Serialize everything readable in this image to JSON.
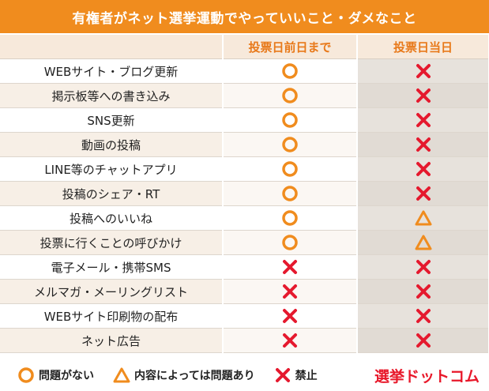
{
  "title": "有権者がネット選挙運動でやっていいこと・ダメなこと",
  "columns": {
    "before": "投票日前日まで",
    "day": "投票日当日"
  },
  "symbol_colors": {
    "ok": "#f08c1e",
    "conditional": "#f08c1e",
    "ng": "#e5192e"
  },
  "rows": [
    {
      "label": "WEBサイト・ブログ更新",
      "before": "ok",
      "day": "ng"
    },
    {
      "label": "掲示板等への書き込み",
      "before": "ok",
      "day": "ng"
    },
    {
      "label": "SNS更新",
      "before": "ok",
      "day": "ng"
    },
    {
      "label": "動画の投稿",
      "before": "ok",
      "day": "ng"
    },
    {
      "label": "LINE等のチャットアプリ",
      "before": "ok",
      "day": "ng"
    },
    {
      "label": "投稿のシェア・RT",
      "before": "ok",
      "day": "ng"
    },
    {
      "label": "投稿へのいいね",
      "before": "ok",
      "day": "conditional"
    },
    {
      "label": "投票に行くことの呼びかけ",
      "before": "ok",
      "day": "conditional"
    },
    {
      "label": "電子メール・携帯SMS",
      "before": "ng",
      "day": "ng"
    },
    {
      "label": "メルマガ・メーリングリスト",
      "before": "ng",
      "day": "ng"
    },
    {
      "label": "WEBサイト印刷物の配布",
      "before": "ng",
      "day": "ng"
    },
    {
      "label": "ネット広告",
      "before": "ng",
      "day": "ng"
    }
  ],
  "legend": {
    "ok": "問題がない",
    "conditional": "内容によっては問題あり",
    "ng": "禁止"
  },
  "brand": "選挙ドットコム"
}
